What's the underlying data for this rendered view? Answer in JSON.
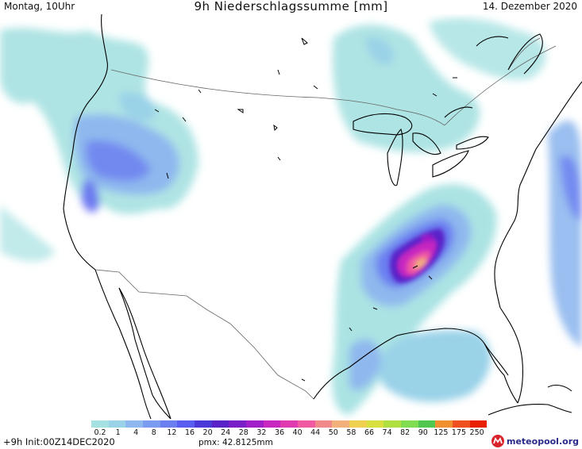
{
  "header": {
    "title": "9h Niederschlagssumme [mm]",
    "date_left": "Montag, 10Uhr",
    "date_right": "14. Dezember 2020"
  },
  "footer": {
    "run_info": "+9h Init:00Z14DEC2020",
    "pmx": "pmx: 42.8125mm",
    "logo_text": "meteopool.org",
    "logo_text_parts": [
      "meteo",
      "pool",
      ".org"
    ]
  },
  "legend": {
    "labels": [
      "0.2",
      "1",
      "4",
      "8",
      "12",
      "16",
      "20",
      "24",
      "28",
      "32",
      "36",
      "40",
      "44",
      "50",
      "58",
      "66",
      "74",
      "82",
      "90",
      "125",
      "175",
      "250"
    ],
    "colors": [
      "#a6e1e1",
      "#9ad2e8",
      "#8fb8ee",
      "#7a9bf0",
      "#6a7ef0",
      "#5a5ef0",
      "#4b3ad8",
      "#5a23c8",
      "#7a1fc8",
      "#a01fc8",
      "#c828c0",
      "#e03ab0",
      "#f05aa0",
      "#f08a8a",
      "#f2b07a",
      "#f0d050",
      "#d8e040",
      "#b0e040",
      "#80dc50",
      "#50c850",
      "#f09030",
      "#f05020",
      "#e82000"
    ],
    "units": "mm"
  },
  "map": {
    "type": "precipitation-forecast",
    "region": "Vereinigte Staaten",
    "colors": {
      "coast": "#000000",
      "border": "#666666",
      "background": "#ffffff"
    }
  }
}
